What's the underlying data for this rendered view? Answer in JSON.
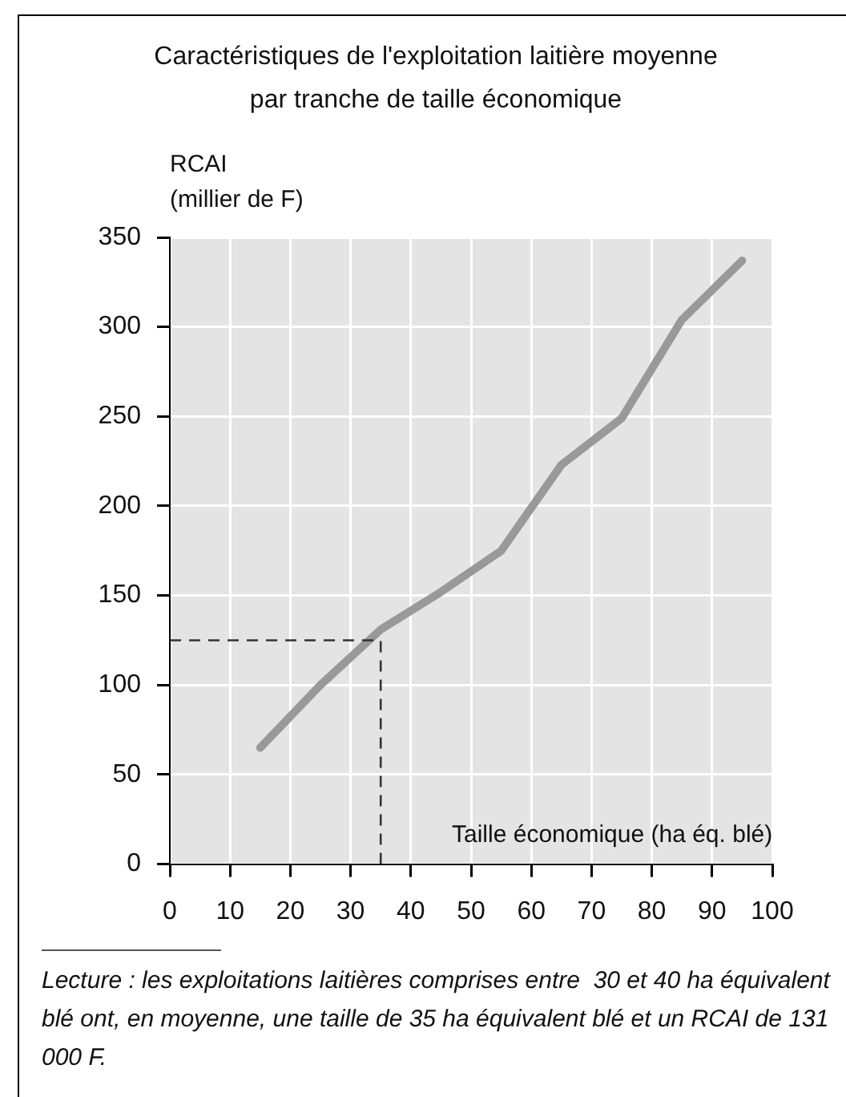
{
  "chart_data": {
    "type": "line",
    "title": "Caractéristiques de l'exploitation laitière moyenne\npar tranche de taille économique",
    "ylabel": "RCAI\n(millier de F)",
    "xlabel": "Taille économique (ha éq. blé)",
    "x": [
      15,
      25,
      35,
      45,
      55,
      65,
      75,
      85,
      95
    ],
    "series": [
      {
        "color": "#999999",
        "values": [
          65,
          100,
          131,
          152,
          175,
          223,
          249,
          304,
          337
        ]
      }
    ],
    "xlim": [
      0,
      100
    ],
    "xticks": [
      0,
      10,
      20,
      30,
      40,
      50,
      60,
      70,
      80,
      90,
      100
    ],
    "ylim": [
      0,
      350
    ],
    "yticks": [
      0,
      50,
      100,
      150,
      200,
      250,
      300,
      350
    ],
    "ref_lines": [
      {
        "axis": "x",
        "value": 35,
        "label": null,
        "color": "#333333",
        "line_style": "dashed"
      },
      {
        "axis": "y",
        "value": 125,
        "label": null,
        "color": "#333333",
        "line_style": "dashed"
      }
    ],
    "annotations": [
      "Lecture : les exploitations laitières comprises entre  30 et 40 ha équivalent blé ont, en moyenne, une taille de 35 ha équivalent blé et un RCAI de 131 000 F."
    ],
    "grid": true,
    "legend": false,
    "marker": "none",
    "line_style": "solid"
  }
}
